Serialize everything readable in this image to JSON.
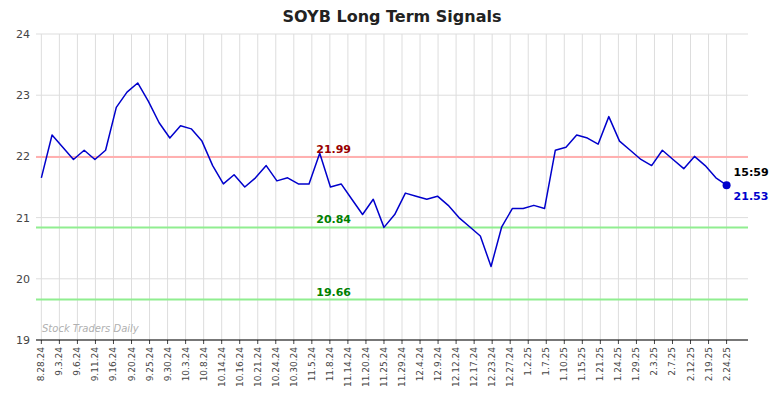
{
  "chart_data": {
    "type": "line",
    "title": "SOYB Long Term Signals",
    "series": [
      {
        "name": "SOYB",
        "color": "#0000cc",
        "values": [
          21.65,
          22.35,
          22.15,
          21.95,
          22.1,
          21.95,
          22.1,
          22.8,
          23.05,
          23.2,
          22.9,
          22.55,
          22.3,
          22.5,
          22.45,
          22.25,
          21.85,
          21.55,
          21.7,
          21.5,
          21.65,
          21.85,
          21.6,
          21.65,
          21.55,
          21.55,
          22.05,
          21.5,
          21.55,
          21.3,
          21.05,
          21.3,
          20.84,
          21.05,
          21.4,
          21.35,
          21.3,
          21.35,
          21.2,
          21.0,
          20.85,
          20.7,
          20.2,
          20.85,
          21.15,
          21.15,
          21.2,
          21.15,
          22.1,
          22.15,
          22.35,
          22.3,
          22.2,
          22.65,
          22.25,
          22.1,
          21.95,
          21.85,
          22.1,
          21.95,
          21.8,
          22.0,
          21.85,
          21.65,
          21.53
        ]
      }
    ],
    "xlim": [
      -0.5,
      66
    ],
    "xticks": [
      {
        "value": 0,
        "label": "8.28.24"
      },
      {
        "value": 1.6842,
        "label": "9.3.24"
      },
      {
        "value": 3.3684,
        "label": "9.6.24"
      },
      {
        "value": 5.0526,
        "label": "9.11.24"
      },
      {
        "value": 6.7368,
        "label": "9.16.24"
      },
      {
        "value": 8.4211,
        "label": "9.20.24"
      },
      {
        "value": 10.1053,
        "label": "9.25.24"
      },
      {
        "value": 11.7895,
        "label": "9.30.24"
      },
      {
        "value": 13.4737,
        "label": "10.3.24"
      },
      {
        "value": 15.1579,
        "label": "10.8.24"
      },
      {
        "value": 16.8421,
        "label": "10.14.24"
      },
      {
        "value": 18.5263,
        "label": "10.16.24"
      },
      {
        "value": 20.2105,
        "label": "10.21.24"
      },
      {
        "value": 21.8947,
        "label": "10.24.24"
      },
      {
        "value": 23.5789,
        "label": "10.30.24"
      },
      {
        "value": 25.2632,
        "label": "11.5.24"
      },
      {
        "value": 26.9474,
        "label": "11.8.24"
      },
      {
        "value": 28.6316,
        "label": "11.14.24"
      },
      {
        "value": 30.3158,
        "label": "11.20.24"
      },
      {
        "value": 32,
        "label": "11.25.24"
      },
      {
        "value": 33.6842,
        "label": "11.29.24"
      },
      {
        "value": 35.3684,
        "label": "12.4.24"
      },
      {
        "value": 37.0526,
        "label": "12.9.24"
      },
      {
        "value": 38.7368,
        "label": "12.12.24"
      },
      {
        "value": 40.4211,
        "label": "12.17.24"
      },
      {
        "value": 42.1053,
        "label": "12.23.24"
      },
      {
        "value": 43.7895,
        "label": "12.27.24"
      },
      {
        "value": 45.4737,
        "label": "1.2.25"
      },
      {
        "value": 47.1579,
        "label": "1.7.25"
      },
      {
        "value": 48.8421,
        "label": "1.10.25"
      },
      {
        "value": 50.5263,
        "label": "1.15.25"
      },
      {
        "value": 52.2105,
        "label": "1.21.25"
      },
      {
        "value": 53.8947,
        "label": "1.24.25"
      },
      {
        "value": 55.5789,
        "label": "1.29.25"
      },
      {
        "value": 57.2632,
        "label": "2.3.25"
      },
      {
        "value": 58.9474,
        "label": "2.7.25"
      },
      {
        "value": 60.6316,
        "label": "2.12.25"
      },
      {
        "value": 62.3158,
        "label": "2.19.25"
      },
      {
        "value": 64,
        "label": "2.24.25"
      }
    ],
    "ylim": [
      19,
      24
    ],
    "yticks": [
      19,
      20,
      21,
      22,
      23,
      24
    ],
    "grid": true,
    "annotations": [
      {
        "text": "21.99",
        "y": 21.99,
        "color": "#ffb0b0"
      },
      {
        "text": "20.84",
        "y": 20.84,
        "color": "#90ee90"
      },
      {
        "text": "19.66",
        "y": 19.66,
        "color": "#90ee90"
      },
      {
        "text": "15:59",
        "x": 64,
        "y": 21.53
      },
      {
        "text": "21.53",
        "x": 64,
        "y": 21.53
      },
      {
        "text": "Stock Traders Daily"
      }
    ]
  }
}
